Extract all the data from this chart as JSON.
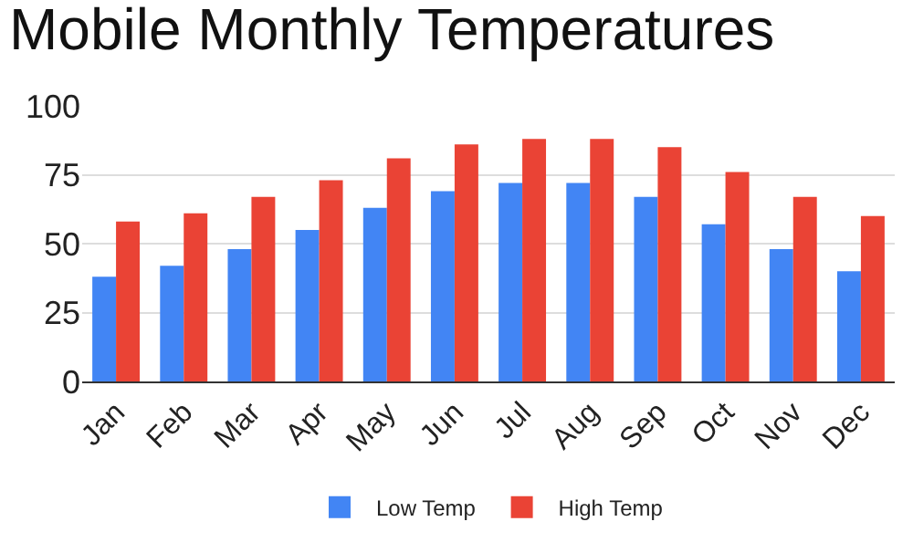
{
  "chart_data": {
    "type": "bar",
    "title": "Mobile Monthly Temperatures",
    "categories": [
      "Jan",
      "Feb",
      "Mar",
      "Apr",
      "May",
      "Jun",
      "Jul",
      "Aug",
      "Sep",
      "Oct",
      "Nov",
      "Dec"
    ],
    "series": [
      {
        "name": "Low Temp",
        "color": "#4285f4",
        "values": [
          38,
          42,
          48,
          55,
          63,
          69,
          72,
          72,
          67,
          57,
          48,
          40
        ]
      },
      {
        "name": "High Temp",
        "color": "#ea4335",
        "values": [
          58,
          61,
          67,
          73,
          81,
          86,
          88,
          88,
          85,
          76,
          67,
          60
        ]
      }
    ],
    "ylim": [
      0,
      100
    ],
    "yticks": [
      0,
      25,
      50,
      75,
      100
    ],
    "grid": "y",
    "legend": "bottom"
  }
}
